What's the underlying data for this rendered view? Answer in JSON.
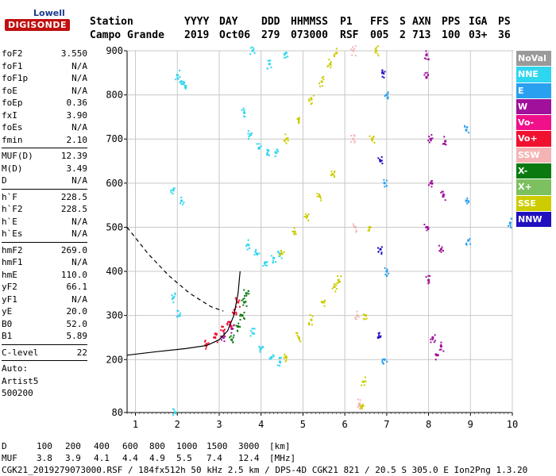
{
  "logo": {
    "line1": "Lowell",
    "line2": "DIGISONDE"
  },
  "header": {
    "labels": [
      "Station",
      "YYYY",
      "DAY",
      "DDD",
      "HHMMSS",
      "P1",
      "FFS",
      "S",
      "AXN",
      "PPS",
      "IGA",
      "PS"
    ],
    "values": [
      "Campo Grande",
      "2019",
      "Oct06",
      "279",
      "073000",
      "RSF",
      "005",
      "2",
      "713",
      "100",
      "03+",
      "36"
    ]
  },
  "sidebar": {
    "group1": [
      {
        "k": "foF2",
        "v": "3.550"
      },
      {
        "k": "foF1",
        "v": "N/A"
      },
      {
        "k": "foF1p",
        "v": "N/A"
      },
      {
        "k": "foE",
        "v": "N/A"
      },
      {
        "k": "foEp",
        "v": "0.36"
      },
      {
        "k": "fxI",
        "v": "3.90"
      },
      {
        "k": "foEs",
        "v": "N/A"
      },
      {
        "k": "fmin",
        "v": "2.10"
      }
    ],
    "group2": [
      {
        "k": "MUF(D)",
        "v": "12.39"
      },
      {
        "k": "M(D)",
        "v": "3.49"
      },
      {
        "k": "D",
        "v": "N/A"
      }
    ],
    "group3": [
      {
        "k": "h`F",
        "v": "228.5"
      },
      {
        "k": "h`F2",
        "v": "228.5"
      },
      {
        "k": "h`E",
        "v": "N/A"
      },
      {
        "k": "h`Es",
        "v": "N/A"
      }
    ],
    "group4": [
      {
        "k": "hmF2",
        "v": "269.0"
      },
      {
        "k": "hmF1",
        "v": "N/A"
      },
      {
        "k": "hmE",
        "v": "110.0"
      },
      {
        "k": "yF2",
        "v": "66.1"
      },
      {
        "k": "yF1",
        "v": "N/A"
      },
      {
        "k": "yE",
        "v": "20.0"
      },
      {
        "k": "B0",
        "v": "52.0"
      },
      {
        "k": "B1",
        "v": "5.89"
      }
    ],
    "clevel": {
      "k": "C-level",
      "v": "22"
    },
    "auto": [
      "Auto:",
      "Artist5",
      "500200"
    ]
  },
  "legend": [
    {
      "label": "NoVal",
      "color": "#9a9a9a"
    },
    {
      "label": "NNE",
      "color": "#2fd6f0"
    },
    {
      "label": "E",
      "color": "#2aa0f0"
    },
    {
      "label": "W",
      "color": "#a0109a"
    },
    {
      "label": "Vo-",
      "color": "#f0108a"
    },
    {
      "label": "Vo+",
      "color": "#f01030"
    },
    {
      "label": "SSW",
      "color": "#f4b4b4"
    },
    {
      "label": "X-",
      "color": "#0a7a10"
    },
    {
      "label": "X+",
      "color": "#7cc060"
    },
    {
      "label": "SSE",
      "color": "#cccc00"
    },
    {
      "label": "NNW",
      "color": "#2010c0"
    }
  ],
  "footer": {
    "d_label": "D",
    "d_values": [
      "100",
      "200",
      "400",
      "600",
      "800",
      "1000",
      "1500",
      "3000",
      "[km]"
    ],
    "muf_label": "MUF",
    "muf_values": [
      "3.8",
      "3.9",
      "4.1",
      "4.4",
      "4.9",
      "5.5",
      "7.4",
      "12.4",
      "[MHz]"
    ],
    "info": "CGK21_2019279073000.RSF / 184fx512h 50 kHz 2.5 km / DPS-4D CGK21 821 / 20.5 S 305.0 E Ion2Png 1.3.20"
  },
  "chart_data": {
    "type": "scatter",
    "xlim": [
      0.8,
      10
    ],
    "ylim": [
      80,
      900
    ],
    "xticks": [
      1,
      2,
      3,
      4,
      5,
      6,
      7,
      8,
      9,
      10
    ],
    "yticks": [
      200,
      300,
      400,
      500,
      600,
      700,
      800,
      900
    ],
    "ytick_labels_shown": [
      80,
      200,
      300,
      400,
      500,
      600,
      700,
      800,
      900
    ],
    "grid": true,
    "legend_position": "right",
    "series": [
      {
        "name": "NNE",
        "color": "#2fd6f0",
        "points": [
          [
            1.95,
            80
          ],
          [
            2.0,
            845
          ],
          [
            2.1,
            830
          ],
          [
            2.2,
            820
          ],
          [
            1.9,
            585
          ],
          [
            2.1,
            560
          ],
          [
            1.9,
            340
          ],
          [
            2.05,
            300
          ],
          [
            3.8,
            900
          ],
          [
            4.2,
            870
          ],
          [
            4.6,
            895
          ],
          [
            3.6,
            760
          ],
          [
            3.75,
            710
          ],
          [
            3.95,
            680
          ],
          [
            4.15,
            665
          ],
          [
            4.35,
            670
          ],
          [
            3.7,
            460
          ],
          [
            3.9,
            440
          ],
          [
            4.1,
            420
          ],
          [
            4.3,
            430
          ],
          [
            4.45,
            440
          ],
          [
            3.8,
            260
          ],
          [
            4.0,
            225
          ],
          [
            4.25,
            205
          ],
          [
            4.45,
            195
          ]
        ]
      },
      {
        "name": "SSE",
        "color": "#cccc00",
        "points": [
          [
            4.6,
            700
          ],
          [
            4.9,
            745
          ],
          [
            5.2,
            790
          ],
          [
            5.45,
            830
          ],
          [
            5.65,
            870
          ],
          [
            5.8,
            895
          ],
          [
            4.5,
            440
          ],
          [
            4.8,
            490
          ],
          [
            5.1,
            525
          ],
          [
            5.4,
            570
          ],
          [
            5.7,
            620
          ],
          [
            4.6,
            205
          ],
          [
            4.9,
            250
          ],
          [
            5.2,
            290
          ],
          [
            5.5,
            330
          ],
          [
            5.75,
            365
          ],
          [
            5.85,
            380
          ],
          [
            6.75,
            900
          ],
          [
            6.65,
            700
          ],
          [
            6.6,
            500
          ],
          [
            6.5,
            300
          ],
          [
            6.45,
            150
          ],
          [
            6.4,
            90
          ]
        ]
      },
      {
        "name": "SSW",
        "color": "#f4b4b4",
        "points": [
          [
            6.2,
            900
          ],
          [
            6.2,
            700
          ],
          [
            6.25,
            500
          ],
          [
            6.3,
            300
          ],
          [
            6.35,
            100
          ]
        ]
      },
      {
        "name": "W",
        "color": "#a0109a",
        "points": [
          [
            7.95,
            890
          ],
          [
            7.95,
            840
          ],
          [
            8.05,
            700
          ],
          [
            8.05,
            600
          ],
          [
            7.95,
            500
          ],
          [
            8.0,
            380
          ],
          [
            8.1,
            250
          ],
          [
            8.2,
            210
          ],
          [
            8.4,
            695
          ],
          [
            8.35,
            570
          ],
          [
            8.3,
            450
          ],
          [
            8.3,
            230
          ],
          [
            3.1,
            250
          ],
          [
            3.3,
            270
          ]
        ]
      },
      {
        "name": "Vo+",
        "color": "#f01030",
        "points": [
          [
            2.7,
            235
          ],
          [
            2.9,
            250
          ],
          [
            3.1,
            265
          ],
          [
            3.25,
            285
          ],
          [
            3.35,
            305
          ],
          [
            3.45,
            330
          ]
        ]
      },
      {
        "name": "X-",
        "color": "#0a7a10",
        "points": [
          [
            3.3,
            245
          ],
          [
            3.45,
            275
          ],
          [
            3.55,
            300
          ],
          [
            3.6,
            330
          ],
          [
            3.65,
            350
          ]
        ]
      },
      {
        "name": "E",
        "color": "#2aa0f0",
        "points": [
          [
            7.0,
            800
          ],
          [
            6.95,
            600
          ],
          [
            7.0,
            400
          ],
          [
            6.95,
            200
          ],
          [
            8.9,
            720
          ],
          [
            8.9,
            560
          ],
          [
            8.95,
            470
          ],
          [
            9.95,
            510
          ]
        ]
      },
      {
        "name": "NNW",
        "color": "#2010c0",
        "points": [
          [
            6.9,
            850
          ],
          [
            6.85,
            650
          ],
          [
            6.85,
            450
          ],
          [
            6.8,
            250
          ]
        ]
      }
    ],
    "curves": [
      {
        "style": "solid",
        "points": [
          [
            0.8,
            210
          ],
          [
            1.5,
            218
          ],
          [
            2.2,
            225
          ],
          [
            2.7,
            232
          ],
          [
            3.0,
            245
          ],
          [
            3.2,
            265
          ],
          [
            3.35,
            300
          ],
          [
            3.45,
            350
          ],
          [
            3.5,
            400
          ]
        ]
      },
      {
        "style": "dashed",
        "points": [
          [
            0.8,
            500
          ],
          [
            1.3,
            440
          ],
          [
            1.8,
            390
          ],
          [
            2.3,
            350
          ],
          [
            2.8,
            320
          ],
          [
            3.1,
            310
          ]
        ]
      }
    ]
  }
}
